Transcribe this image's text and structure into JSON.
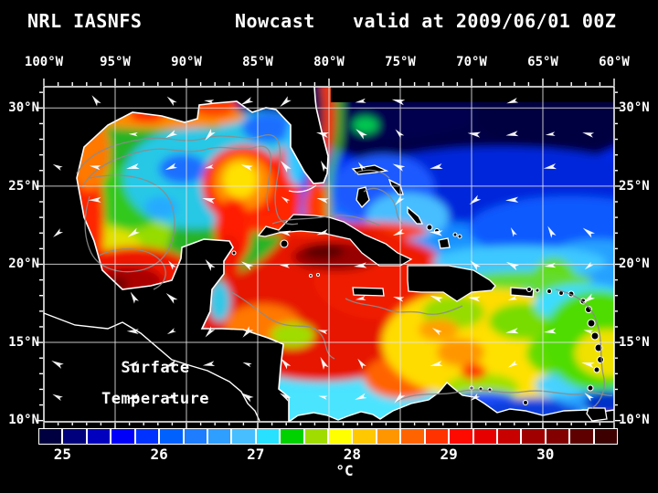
{
  "header": {
    "model": "NRL IASNFS",
    "product": "Nowcast",
    "valid": "valid at 2009/06/01 00Z"
  },
  "map": {
    "lon_ticks": [
      "100°W",
      "95°W",
      "90°W",
      "85°W",
      "80°W",
      "75°W",
      "70°W",
      "65°W",
      "60°W"
    ],
    "lat_ticks": [
      "30°N",
      "25°N",
      "20°N",
      "15°N",
      "10°N"
    ],
    "annotation": {
      "line1": "Surface",
      "line2": "Temperature"
    }
  },
  "colorbar": {
    "unit": "°C",
    "tick_labels": [
      "25",
      "26",
      "27",
      "28",
      "29",
      "30"
    ],
    "tick_cell_index": [
      1,
      5,
      9,
      13,
      17,
      21
    ],
    "cell_colors": [
      "#000041",
      "#00007D",
      "#0000BE",
      "#0000FA",
      "#0032FF",
      "#0061FF",
      "#1E7DFF",
      "#2E9EFF",
      "#46BEFF",
      "#28E1FF",
      "#00D200",
      "#A0DC00",
      "#FFFF00",
      "#FFC800",
      "#FF9600",
      "#FF6400",
      "#FF3200",
      "#FF0A00",
      "#E60000",
      "#C80000",
      "#A00000",
      "#820000",
      "#5F0000",
      "#3C0000"
    ]
  },
  "colors": {
    "background": "#000000",
    "text": "#FFFFFF",
    "land": "#000000",
    "coastline": "#FFFFFF",
    "grid": "#E6E6E6",
    "contour": "#8C8C8C",
    "wind_vector": "#FFFFFF"
  }
}
